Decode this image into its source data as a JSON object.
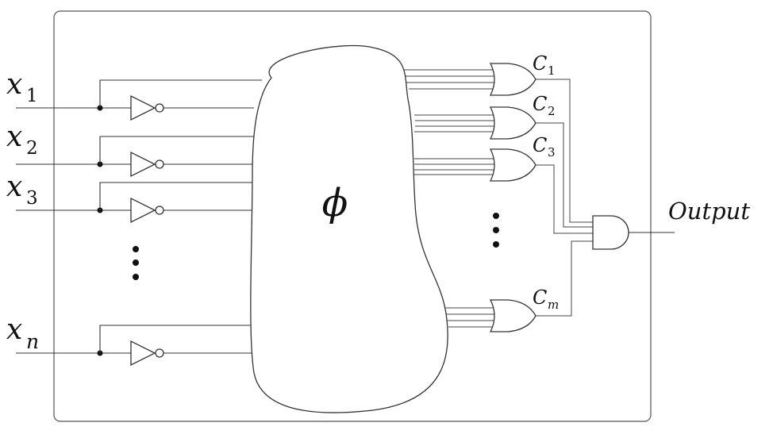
{
  "diagram": {
    "inputs": [
      {
        "var": "x",
        "sub": "1"
      },
      {
        "var": "x",
        "sub": "2"
      },
      {
        "var": "x",
        "sub": "3"
      },
      {
        "var": "x",
        "sub": "n"
      }
    ],
    "formula_symbol": "ϕ",
    "clauses": [
      {
        "var": "C",
        "sub": "1"
      },
      {
        "var": "C",
        "sub": "2"
      },
      {
        "var": "C",
        "sub": "3"
      },
      {
        "var": "C",
        "sub": "m"
      }
    ],
    "output_label": "Output"
  }
}
